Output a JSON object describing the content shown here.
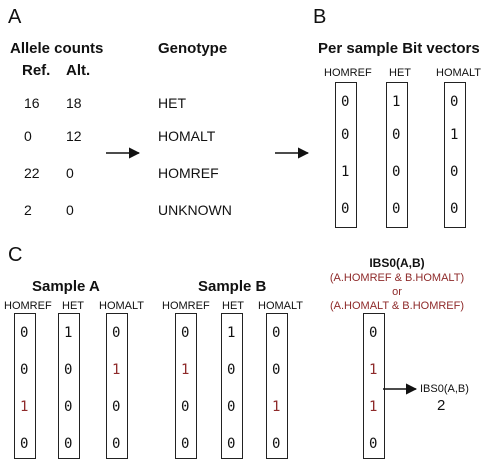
{
  "panels": {
    "a": "A",
    "b": "B",
    "c": "C"
  },
  "panel_a": {
    "allele_title": "Allele counts",
    "ref_header": "Ref.",
    "alt_header": "Alt.",
    "genotype_title": "Genotype",
    "rows": [
      {
        "ref": "16",
        "alt": "18",
        "genotype": "HET"
      },
      {
        "ref": "0",
        "alt": "12",
        "genotype": "HOMALT"
      },
      {
        "ref": "22",
        "alt": "0",
        "genotype": "HOMREF"
      },
      {
        "ref": "2",
        "alt": "0",
        "genotype": "UNKNOWN"
      }
    ]
  },
  "panel_b": {
    "title": "Per sample Bit vectors",
    "col_homref": "HOMREF",
    "col_het": "HET",
    "col_homalt": "HOMALT",
    "homref": [
      "0",
      "0",
      "1",
      "0"
    ],
    "het": [
      "1",
      "0",
      "0",
      "0"
    ],
    "homalt": [
      "0",
      "1",
      "0",
      "0"
    ]
  },
  "panel_c": {
    "sample_a": {
      "title": "Sample A",
      "col_homref": "HOMREF",
      "col_het": "HET",
      "col_homalt": "HOMALT",
      "homref": [
        "0",
        "0",
        "1",
        "0"
      ],
      "het": [
        "1",
        "0",
        "0",
        "0"
      ],
      "homalt": [
        "0",
        "1",
        "0",
        "0"
      ]
    },
    "sample_b": {
      "title": "Sample B",
      "col_homref": "HOMREF",
      "col_het": "HET",
      "col_homalt": "HOMALT",
      "homref": [
        "0",
        "1",
        "0",
        "0"
      ],
      "het": [
        "1",
        "0",
        "0",
        "0"
      ],
      "homalt": [
        "0",
        "0",
        "1",
        "0"
      ]
    },
    "ibs0": {
      "title": "IBS0(A,B)",
      "line1": "(A.HOMREF & B.HOMALT)",
      "line2": "or",
      "line3": "(A.HOMALT & B.HOMREF)",
      "vector": [
        "0",
        "1",
        "1",
        "0"
      ],
      "result_label": "IBS0(A,B)",
      "result_value": "2"
    }
  },
  "colors": {
    "highlight": "#8e2a2a",
    "text": "#111111"
  }
}
